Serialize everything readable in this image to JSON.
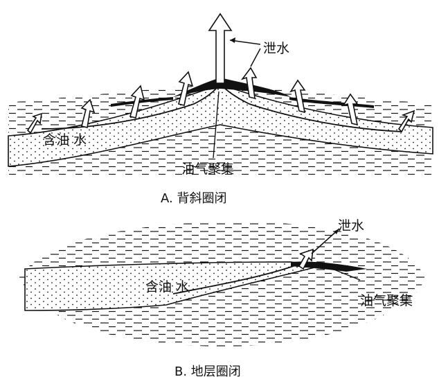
{
  "colors": {
    "ink": "#111111",
    "paper": "#ffffff"
  },
  "diagram_a": {
    "caption": "A. 背斜圈闭",
    "label_release_water": "泄水",
    "label_oil_water": "含油 水",
    "label_oil_gas_accumulation": "油气聚集"
  },
  "diagram_b": {
    "caption": "B. 地层圈闭",
    "label_release_water": "泄水",
    "label_oil_water": "含油 水",
    "label_oil_gas_accumulation": "油气聚集"
  }
}
